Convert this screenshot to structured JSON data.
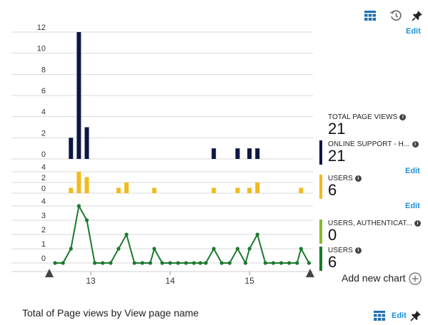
{
  "toolbar": {
    "edit_label": "Edit",
    "icons": [
      "grid-icon",
      "history-icon",
      "pin-icon"
    ]
  },
  "colors": {
    "navy": "#0d1744",
    "yellow": "#f2bb1d",
    "green": "#1b7a2e",
    "lime": "#8bb82a",
    "grid": "#d4d4d4",
    "accent": "#1f8fd6"
  },
  "metrics": [
    {
      "label": "TOTAL PAGE VIEWS",
      "value": "21"
    },
    {
      "label": "ONLINE SUPPORT - H...",
      "value": "21",
      "color": "#0d1744"
    },
    {
      "label": "USERS",
      "value": "6",
      "color": "#f2bb1d",
      "edit": "Edit"
    },
    {
      "label": "USERS, AUTHENTICAT...",
      "value": "0",
      "color": "#8bb82a",
      "edit": "Edit"
    },
    {
      "label": "USERS",
      "value": "6",
      "color": "#1b7a2e"
    }
  ],
  "add_chart_label": "Add new chart",
  "footer": {
    "title": "Total of Page views by View page name",
    "edit_label": "Edit"
  },
  "chart_data": {
    "type": "bar",
    "x_ticks": [
      "13",
      "14",
      "15"
    ],
    "panels": [
      {
        "series": "page_views",
        "type": "bar",
        "color": "#0d1744",
        "ylim": [
          0,
          12
        ],
        "yticks": [
          "0",
          "2",
          "4",
          "6",
          "8",
          "10",
          "12"
        ],
        "x": [
          12.75,
          12.85,
          12.95,
          14.55,
          14.85,
          15.0,
          15.1
        ],
        "values": [
          2,
          12,
          3,
          1,
          1,
          1,
          1
        ]
      },
      {
        "series": "users_bar",
        "type": "bar",
        "color": "#f2bb1d",
        "ylim": [
          0,
          4
        ],
        "yticks": [
          "0",
          "2",
          "4"
        ],
        "x": [
          12.75,
          12.85,
          12.95,
          13.35,
          13.45,
          13.8,
          14.55,
          14.85,
          15.0,
          15.1,
          15.65
        ],
        "values": [
          1,
          4,
          3,
          1,
          2,
          1,
          1,
          1,
          1,
          2,
          1
        ]
      },
      {
        "series": "users_line",
        "type": "line",
        "color": "#1b7a2e",
        "ylim": [
          0,
          4
        ],
        "yticks": [
          "0",
          "1",
          "2",
          "3",
          "4"
        ],
        "x": [
          12.55,
          12.65,
          12.75,
          12.85,
          12.95,
          13.05,
          13.15,
          13.25,
          13.35,
          13.45,
          13.55,
          13.65,
          13.75,
          13.8,
          13.9,
          14.0,
          14.1,
          14.2,
          14.3,
          14.38,
          14.45,
          14.55,
          14.65,
          14.75,
          14.85,
          14.95,
          15.0,
          15.1,
          15.2,
          15.3,
          15.4,
          15.5,
          15.6,
          15.65,
          15.75
        ],
        "values": [
          0,
          0,
          1,
          4,
          3,
          0,
          0,
          0,
          1,
          2,
          0,
          0,
          0,
          1,
          0,
          0,
          0,
          0,
          0,
          0,
          0,
          1,
          0,
          0,
          1,
          0,
          1,
          2,
          0,
          0,
          0,
          0,
          0,
          1,
          0
        ]
      }
    ]
  }
}
